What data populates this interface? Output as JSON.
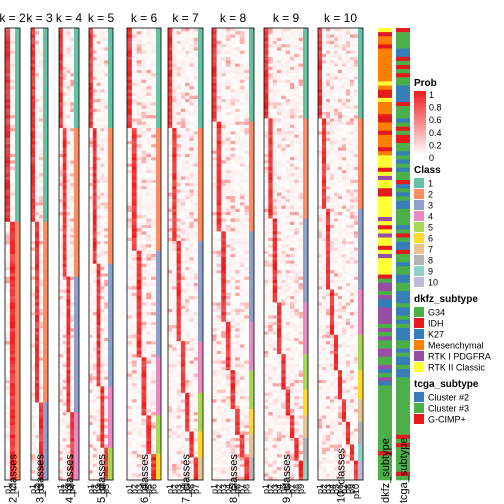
{
  "chart_data": {
    "type": "heatmap",
    "panels": [
      {
        "title": "k = 2",
        "xlabel": "2_classes",
        "columns": [
          "p1",
          "p2"
        ],
        "segments": [
          0.43,
          0.57
        ]
      },
      {
        "title": "k = 3",
        "xlabel": "3_classes",
        "columns": [
          "p1",
          "p2",
          "p3"
        ],
        "segments": [
          0.43,
          0.4,
          0.17
        ]
      },
      {
        "title": "k = 4",
        "xlabel": "4_classes",
        "columns": [
          "p1",
          "p2",
          "p3",
          "p4"
        ],
        "segments": [
          0.22,
          0.33,
          0.3,
          0.15
        ]
      },
      {
        "title": "k = 5",
        "xlabel": "5_classes",
        "columns": [
          "p1",
          "p2",
          "p3",
          "p4",
          "p5"
        ],
        "segments": [
          0.22,
          0.3,
          0.27,
          0.14,
          0.07
        ]
      },
      {
        "title": "k = 6",
        "xlabel": "6_classes",
        "columns": [
          "p1",
          "p2",
          "p3",
          "p4",
          "p5",
          "p6"
        ],
        "segments": [
          0.22,
          0.27,
          0.24,
          0.13,
          0.08,
          0.06
        ]
      },
      {
        "title": "k = 7",
        "xlabel": "7_classes",
        "columns": [
          "p1",
          "p2",
          "p3",
          "p4",
          "p5",
          "p6",
          "p7"
        ],
        "segments": [
          0.22,
          0.25,
          0.22,
          0.12,
          0.08,
          0.06,
          0.05
        ]
      },
      {
        "title": "k = 8",
        "xlabel": "8_classes",
        "columns": [
          "p1",
          "p2",
          "p3",
          "p4",
          "p5",
          "p6",
          "p7",
          "p8"
        ],
        "segments": [
          0.21,
          0.24,
          0.2,
          0.11,
          0.08,
          0.06,
          0.05,
          0.05
        ]
      },
      {
        "title": "k = 9",
        "xlabel": "9_classes",
        "columns": [
          "p1",
          "p2",
          "p3",
          "p4",
          "p5",
          "p6",
          "p7",
          "p8",
          "p9"
        ],
        "segments": [
          0.2,
          0.22,
          0.19,
          0.11,
          0.08,
          0.06,
          0.05,
          0.05,
          0.04
        ]
      },
      {
        "title": "k = 10",
        "xlabel": "10_classes",
        "columns": [
          "p1",
          "p2",
          "p3",
          "p4",
          "p5",
          "p6",
          "p7",
          "p8",
          "p9",
          "p10"
        ],
        "segments": [
          0.2,
          0.2,
          0.18,
          0.1,
          0.08,
          0.06,
          0.05,
          0.05,
          0.04,
          0.04
        ]
      }
    ],
    "annotation_columns": [
      "dkfz_subtype",
      "tcga_subtype"
    ],
    "legends": {
      "prob": {
        "title": "Prob",
        "ticks": [
          "1",
          "0.8",
          "0.6",
          "0.4",
          "0.2",
          "0"
        ],
        "low_color": "#ffffff",
        "high_color": "#ee1b1b"
      },
      "class": {
        "title": "Class",
        "items": [
          {
            "label": "1",
            "color": "#66c2a5"
          },
          {
            "label": "2",
            "color": "#fc8d62"
          },
          {
            "label": "3",
            "color": "#8da0cb"
          },
          {
            "label": "4",
            "color": "#e78ac3"
          },
          {
            "label": "5",
            "color": "#a6d854"
          },
          {
            "label": "6",
            "color": "#ffd92f"
          },
          {
            "label": "7",
            "color": "#e5c494"
          },
          {
            "label": "8",
            "color": "#b3b3b3"
          },
          {
            "label": "9",
            "color": "#8dd3c7"
          },
          {
            "label": "10",
            "color": "#bebada"
          }
        ]
      },
      "dkfz": {
        "title": "dkfz_subtype",
        "items": [
          {
            "label": "G34",
            "color": "#4daf4a"
          },
          {
            "label": "IDH",
            "color": "#e41a1c"
          },
          {
            "label": "K27",
            "color": "#377eb8"
          },
          {
            "label": "Mesenchymal",
            "color": "#ff7f00"
          },
          {
            "label": "RTK I PDGFRA",
            "color": "#984ea3"
          },
          {
            "label": "RTK II Classic",
            "color": "#ffff33"
          }
        ]
      },
      "tcga": {
        "title": "tcga_subtype",
        "items": [
          {
            "label": "Cluster #2",
            "color": "#377eb8"
          },
          {
            "label": "Cluster #3",
            "color": "#4daf4a"
          },
          {
            "label": "G-CIMP+",
            "color": "#e41a1c"
          }
        ]
      }
    }
  }
}
